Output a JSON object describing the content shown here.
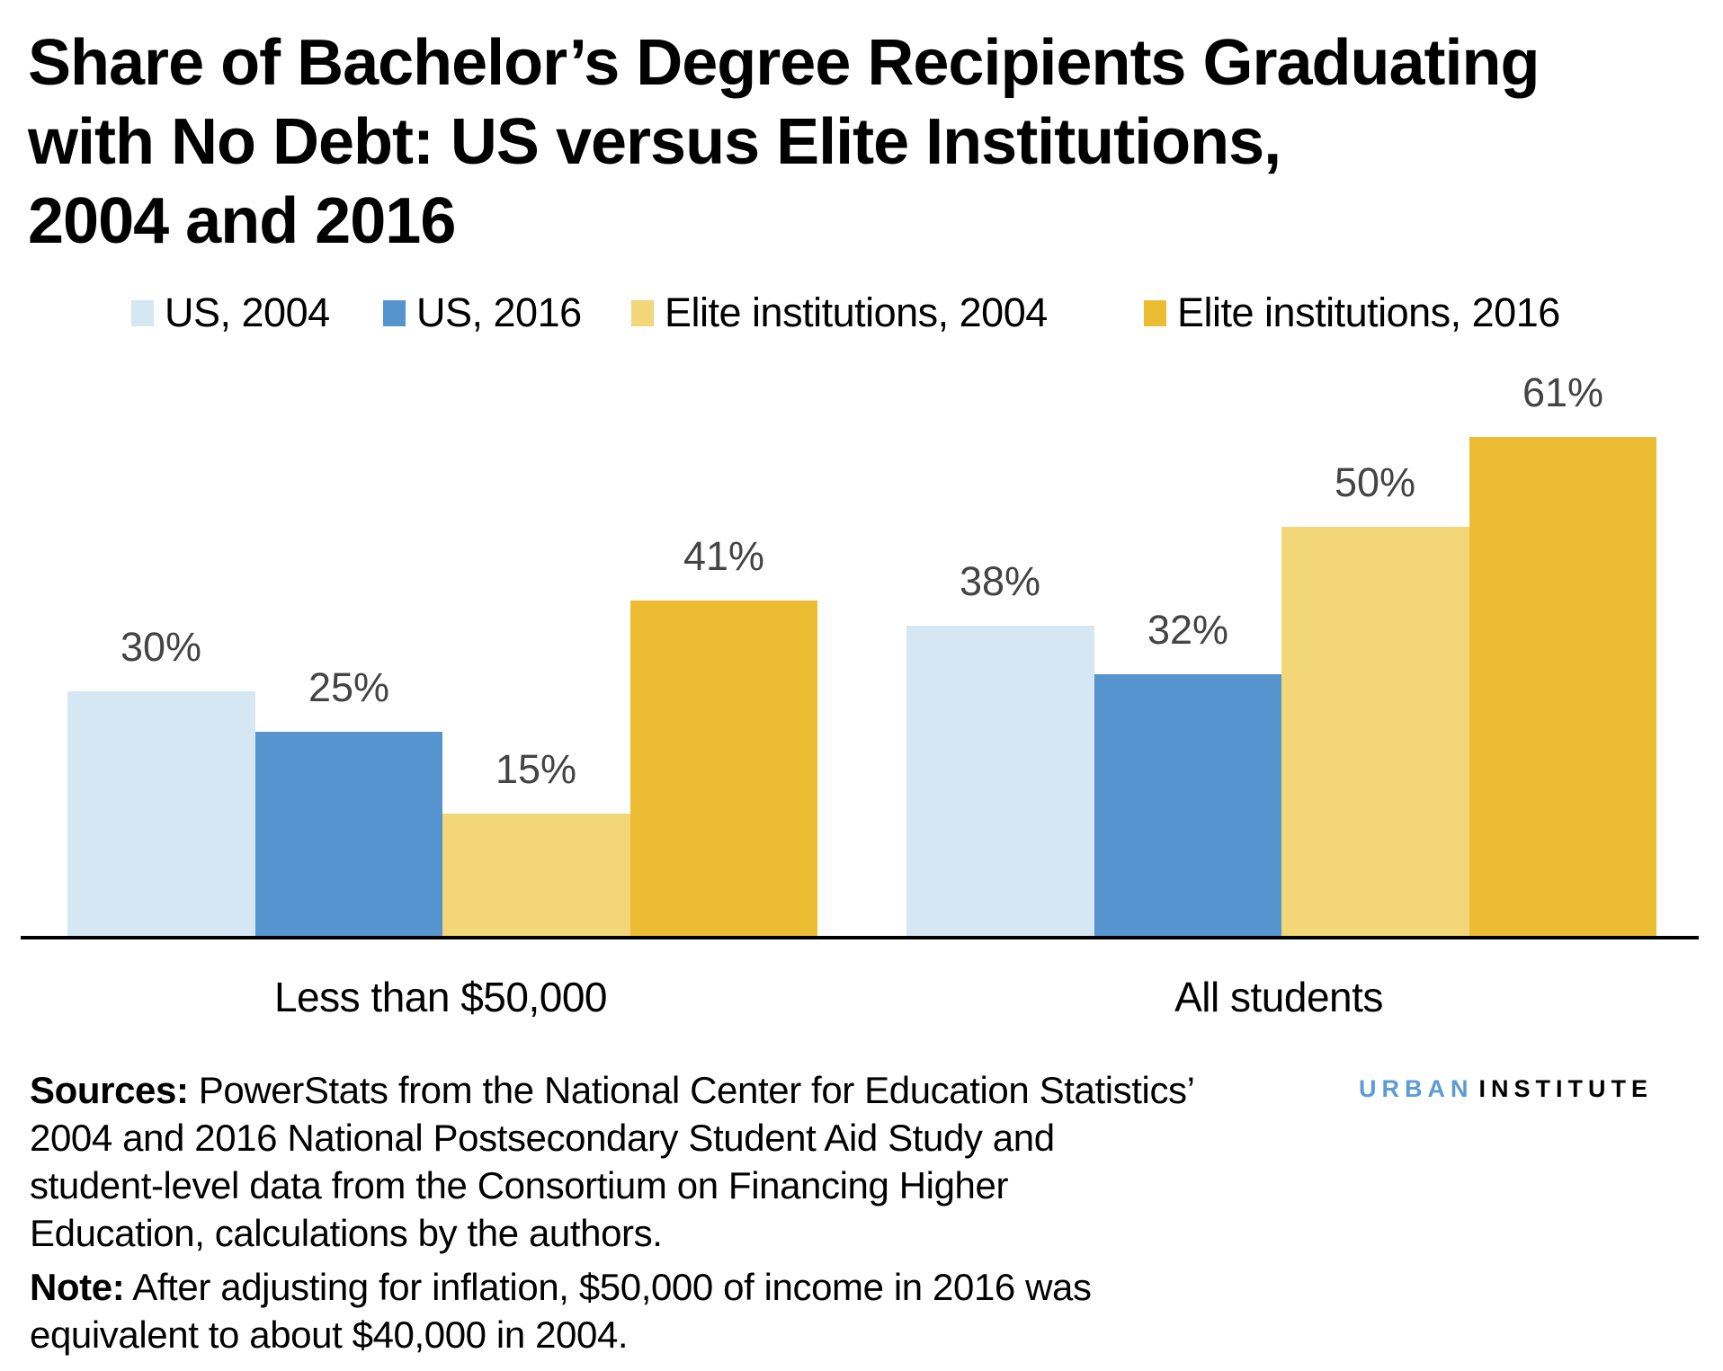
{
  "title": {
    "lines": [
      "Share of Bachelor’s Degree Recipients Graduating",
      "with No Debt: US versus Elite Institutions,",
      "2004 and 2016"
    ]
  },
  "legend": [
    {
      "label": "US, 2004",
      "color": "#d5e7f2"
    },
    {
      "label": "US, 2016",
      "color": "#5694cf"
    },
    {
      "label": "Elite institutions, 2004",
      "color": "#f2d677"
    },
    {
      "label": "Elite institutions, 2016",
      "color": "#ecbd33"
    }
  ],
  "chart_data": {
    "type": "bar",
    "title": "Share of Bachelor’s Degree Recipients Graduating with No Debt: US versus Elite Institutions, 2004 and 2016",
    "xlabel": "",
    "ylabel": "",
    "categories": [
      "Less than $50,000",
      "All students"
    ],
    "series": [
      {
        "name": "US, 2004",
        "color": "#d5e7f2",
        "values": [
          30,
          38
        ],
        "labels": [
          "30%",
          "38%"
        ]
      },
      {
        "name": "US, 2016",
        "color": "#5694cf",
        "values": [
          25,
          32
        ],
        "labels": [
          "25%",
          "32%"
        ]
      },
      {
        "name": "Elite institutions, 2004",
        "color": "#f2d677",
        "values": [
          15,
          50
        ],
        "labels": [
          "15%",
          "50%"
        ]
      },
      {
        "name": "Elite institutions, 2016",
        "color": "#ecbd33",
        "values": [
          41,
          61
        ],
        "labels": [
          "41%",
          "61%"
        ]
      }
    ],
    "ylim": [
      0,
      65
    ],
    "grid": false,
    "legend_position": "top",
    "value_format": "percent"
  },
  "footer": {
    "sources_label": "Sources:",
    "sources_lines": [
      " PowerStats from the National Center for Education Statistics’",
      "2004 and 2016 National Postsecondary Student Aid Study and",
      "student-level data from the Consortium on Financing Higher",
      "Education, calculations by the authors."
    ],
    "note_label": "Note:",
    "note_lines": [
      " After adjusting for inflation, $50,000 of income in 2016 was",
      "equivalent to about $40,000 in 2004."
    ]
  },
  "logo": {
    "part1": "URBAN",
    "part2": "INSTITUTE",
    "part1_color": "#5c9bd5"
  }
}
